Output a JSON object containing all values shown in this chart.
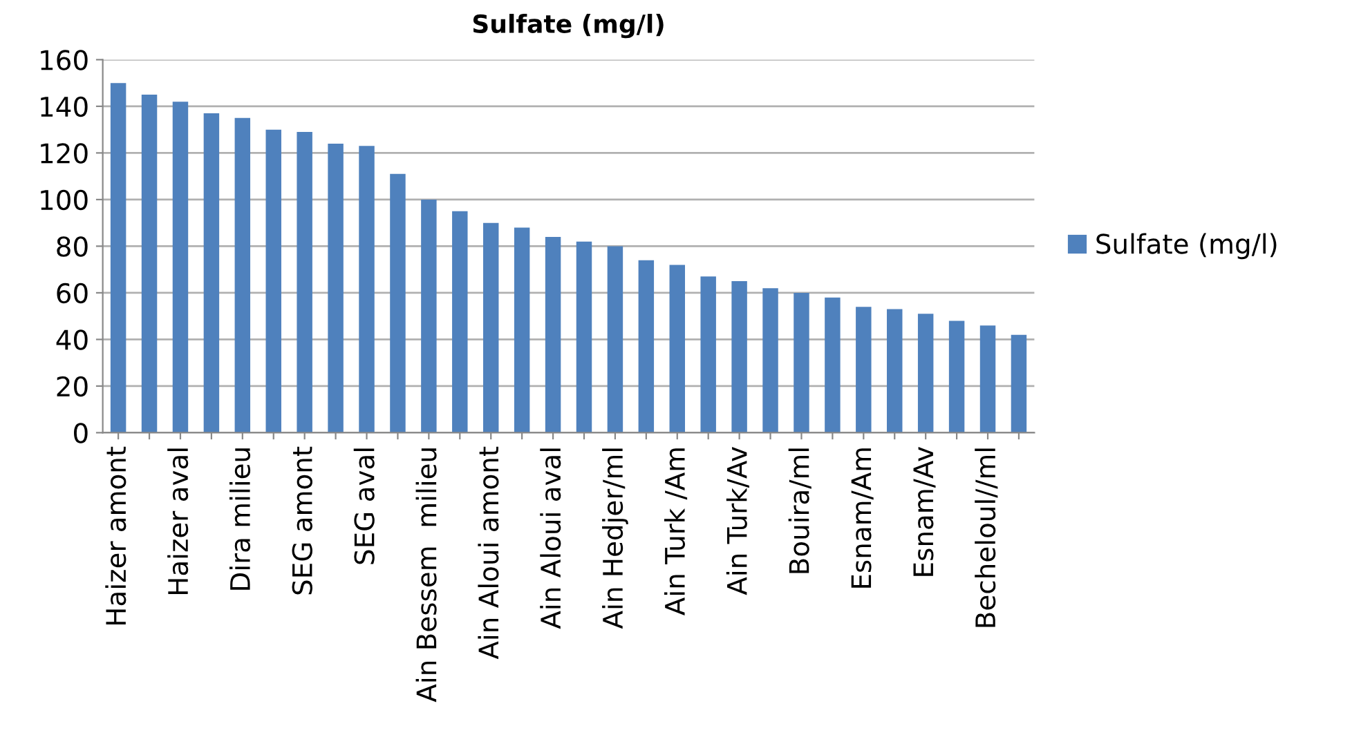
{
  "chart_data": {
    "type": "bar",
    "title": "Sulfate (mg/l)",
    "categories": [
      "Haizer amont",
      null,
      "Haizer aval",
      null,
      "Dira milieu",
      null,
      "SEG amont",
      null,
      "SEG aval",
      null,
      "Ain Bessem  milieu",
      null,
      "Ain Aloui amont",
      null,
      "Ain Aloui aval",
      null,
      "Ain Hedjer/ml",
      null,
      "Ain Turk /Am",
      null,
      "Ain Turk/Av",
      null,
      "Bouira/ml",
      null,
      "Esnam/Am",
      null,
      "Esnam/Av",
      null,
      "Becheloul//ml",
      null
    ],
    "series": [
      {
        "name": "Sulfate (mg/l)",
        "color": "#4f81bd",
        "values": [
          150,
          145,
          142,
          137,
          135,
          130,
          129,
          124,
          123,
          111,
          100,
          95,
          90,
          88,
          84,
          82,
          80,
          74,
          72,
          67,
          65,
          62,
          60,
          58,
          54,
          53,
          51,
          48,
          46,
          42
        ]
      }
    ],
    "ylim": [
      0,
      160
    ],
    "yticks": [
      0,
      20,
      40,
      60,
      80,
      100,
      120,
      140,
      160
    ],
    "grid": "y",
    "legend": "right"
  }
}
